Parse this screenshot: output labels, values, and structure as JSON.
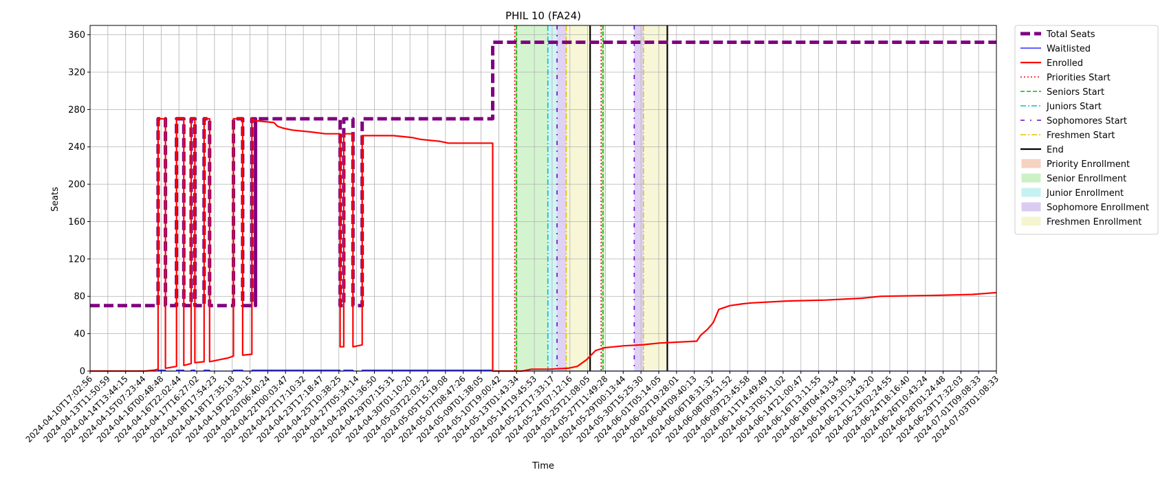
{
  "chart_data": {
    "type": "line",
    "title": "PHIL 10 (FA24)",
    "xlabel": "Time",
    "ylabel": "Seats",
    "ylim": [
      0,
      370
    ],
    "yticks": [
      0,
      40,
      80,
      120,
      160,
      200,
      240,
      280,
      320,
      360
    ],
    "xlim": [
      0,
      49.3
    ],
    "grid": true,
    "x_tick_labels": [
      "2024-04-10T17:02:56",
      "2024-04-13T11:50:59",
      "2024-04-14T13:44:15",
      "2024-04-15T07:23:44",
      "2024-04-16T00:48:48",
      "2024-04-16T22:02:44",
      "2024-04-17T16:27:02",
      "2024-04-18T17:54:23",
      "2024-04-18T17:35:18",
      "2024-04-19T20:33:15",
      "2024-04-20T06:40:24",
      "2024-04-22T00:03:47",
      "2024-04-22T17:10:32",
      "2024-04-23T17:18:47",
      "2024-04-25T10:38:25",
      "2024-04-27T05:34:14",
      "2024-04-29T01:36:50",
      "2024-04-29T07:15:31",
      "2024-04-30T01:10:20",
      "2024-05-03T22:03:22",
      "2024-05-05T15:19:08",
      "2024-05-07T08:47:26",
      "2024-05-09T01:38:05",
      "2024-05-10T19:00:42",
      "2024-05-13T01:43:34",
      "2024-05-14T19:45:53",
      "2024-05-22T17:33:17",
      "2024-05-24T07:12:16",
      "2024-05-25T21:08:05",
      "2024-05-27T11:49:28",
      "2024-05-29T00:13:44",
      "2024-05-30T15:25:30",
      "2024-06-01T05:14:05",
      "2024-06-02T19:28:01",
      "2024-06-04T09:40:13",
      "2024-06-06T18:31:32",
      "2024-06-08T09:51:52",
      "2024-06-09T23:45:58",
      "2024-06-11T14:49:49",
      "2024-06-13T05:11:02",
      "2024-06-14T21:00:47",
      "2024-06-16T13:11:55",
      "2024-06-18T04:43:54",
      "2024-06-19T19:30:34",
      "2024-06-21T11:43:20",
      "2024-06-23T02:24:55",
      "2024-06-24T18:16:40",
      "2024-06-26T10:43:24",
      "2024-06-28T01:24:48",
      "2024-06-29T17:32:03",
      "2024-07-01T09:08:33",
      "2024-07-03T01:08:33"
    ],
    "series": [
      {
        "name": "Total Seats",
        "color": "#800080",
        "style": "dashed-thick",
        "points": [
          [
            0,
            70
          ],
          [
            3.7,
            70
          ],
          [
            3.7,
            270
          ],
          [
            4.1,
            270
          ],
          [
            4.1,
            70
          ],
          [
            4.7,
            70
          ],
          [
            4.7,
            270
          ],
          [
            5.1,
            270
          ],
          [
            5.1,
            70
          ],
          [
            5.5,
            70
          ],
          [
            5.5,
            270
          ],
          [
            5.7,
            270
          ],
          [
            5.7,
            70
          ],
          [
            6.2,
            70
          ],
          [
            6.2,
            270
          ],
          [
            6.5,
            270
          ],
          [
            6.5,
            70
          ],
          [
            7.8,
            70
          ],
          [
            7.8,
            270
          ],
          [
            8.3,
            270
          ],
          [
            8.3,
            70
          ],
          [
            8.8,
            70
          ],
          [
            8.8,
            270
          ],
          [
            9.0,
            270
          ],
          [
            9.0,
            70
          ],
          [
            9.0,
            70
          ],
          [
            9.0,
            270
          ],
          [
            13.6,
            270
          ],
          [
            13.6,
            70
          ],
          [
            13.8,
            70
          ],
          [
            13.8,
            270
          ],
          [
            14.3,
            270
          ],
          [
            14.3,
            70
          ],
          [
            14.8,
            70
          ],
          [
            14.8,
            270
          ],
          [
            21.9,
            270
          ],
          [
            21.9,
            352
          ],
          [
            49.3,
            352
          ]
        ]
      },
      {
        "name": "Waitlisted",
        "color": "#0000ff",
        "style": "solid-thin",
        "points": [
          [
            0,
            0
          ],
          [
            3.7,
            0
          ],
          [
            3.7,
            1
          ],
          [
            4.1,
            1
          ],
          [
            4.1,
            0
          ],
          [
            4.7,
            0
          ],
          [
            4.7,
            1
          ],
          [
            5.1,
            1
          ],
          [
            5.1,
            0
          ],
          [
            5.5,
            0
          ],
          [
            5.5,
            1
          ],
          [
            5.7,
            1
          ],
          [
            5.7,
            0
          ],
          [
            6.2,
            0
          ],
          [
            6.2,
            1
          ],
          [
            6.5,
            1
          ],
          [
            6.5,
            0
          ],
          [
            7.8,
            0
          ],
          [
            7.8,
            1
          ],
          [
            8.3,
            1
          ],
          [
            8.3,
            0
          ],
          [
            8.8,
            0
          ],
          [
            8.8,
            1
          ],
          [
            13.6,
            1
          ],
          [
            13.6,
            0
          ],
          [
            13.8,
            0
          ],
          [
            13.8,
            1
          ],
          [
            14.3,
            1
          ],
          [
            14.3,
            0
          ],
          [
            14.8,
            0
          ],
          [
            14.8,
            1
          ],
          [
            21.9,
            1
          ],
          [
            21.9,
            0
          ],
          [
            49.3,
            0
          ]
        ]
      },
      {
        "name": "Enrolled",
        "color": "#ff0000",
        "style": "solid",
        "points": [
          [
            0,
            0
          ],
          [
            3.0,
            0
          ],
          [
            3.5,
            1
          ],
          [
            3.7,
            2
          ],
          [
            3.7,
            270
          ],
          [
            4.1,
            270
          ],
          [
            4.1,
            3
          ],
          [
            4.7,
            5
          ],
          [
            4.7,
            270
          ],
          [
            5.1,
            270
          ],
          [
            5.1,
            6
          ],
          [
            5.5,
            8
          ],
          [
            5.5,
            270
          ],
          [
            5.7,
            270
          ],
          [
            5.7,
            9
          ],
          [
            6.2,
            10
          ],
          [
            6.2,
            270
          ],
          [
            6.5,
            270
          ],
          [
            6.5,
            10
          ],
          [
            7.0,
            12
          ],
          [
            7.5,
            14
          ],
          [
            7.8,
            16
          ],
          [
            7.8,
            270
          ],
          [
            8.3,
            270
          ],
          [
            8.3,
            17
          ],
          [
            8.8,
            18
          ],
          [
            8.8,
            270
          ],
          [
            9.0,
            268
          ],
          [
            10.0,
            266
          ],
          [
            10.2,
            262
          ],
          [
            10.5,
            260
          ],
          [
            11.0,
            258
          ],
          [
            12.0,
            256
          ],
          [
            12.8,
            254
          ],
          [
            13.6,
            254
          ],
          [
            13.6,
            26
          ],
          [
            13.8,
            26
          ],
          [
            13.8,
            254
          ],
          [
            14.3,
            254
          ],
          [
            14.3,
            26
          ],
          [
            14.8,
            28
          ],
          [
            14.8,
            252
          ],
          [
            16.5,
            252
          ],
          [
            17.5,
            250
          ],
          [
            18.0,
            248
          ],
          [
            19.0,
            246
          ],
          [
            19.5,
            244
          ],
          [
            21.9,
            244
          ],
          [
            21.9,
            0
          ],
          [
            23.5,
            0
          ],
          [
            24.0,
            2
          ],
          [
            25.0,
            2
          ],
          [
            26.0,
            3
          ],
          [
            26.5,
            5
          ],
          [
            27.0,
            12
          ],
          [
            27.5,
            22
          ],
          [
            28.0,
            25
          ],
          [
            29.0,
            27
          ],
          [
            30.0,
            28
          ],
          [
            31.0,
            30
          ],
          [
            33.0,
            32
          ],
          [
            33.2,
            38
          ],
          [
            33.6,
            45
          ],
          [
            33.9,
            52
          ],
          [
            34.2,
            66
          ],
          [
            34.8,
            70
          ],
          [
            35.5,
            72
          ],
          [
            36.0,
            73
          ],
          [
            38.0,
            75
          ],
          [
            40.0,
            76
          ],
          [
            42.0,
            78
          ],
          [
            43.0,
            80
          ],
          [
            46.0,
            81
          ],
          [
            48.0,
            82
          ],
          [
            49.3,
            84
          ]
        ]
      }
    ],
    "vertical_markers": [
      {
        "name": "Priorities Start",
        "color": "#ff0000",
        "style": "dotted",
        "x": [
          23.1,
          27.8
        ]
      },
      {
        "name": "Seniors Start",
        "color": "#00bb00",
        "style": "dashed",
        "x": [
          23.2,
          27.9
        ]
      },
      {
        "name": "Juniors Start",
        "color": "#00bfbf",
        "style": "dashdot",
        "x": [
          24.9
        ]
      },
      {
        "name": "Sophomores Start",
        "color": "#6a00d0",
        "style": "dashdot-wide",
        "x": [
          25.4,
          29.6
        ]
      },
      {
        "name": "Freshmen Start",
        "color": "#e0c000",
        "style": "dashdot",
        "x": [
          25.9,
          30.1
        ]
      },
      {
        "name": "End",
        "color": "#000000",
        "style": "solid",
        "x": [
          27.2,
          31.4
        ]
      }
    ],
    "shaded_regions": [
      {
        "name": "Priority Enrollment",
        "color": "#f4c0a8",
        "ranges": [
          [
            23.1,
            23.2
          ],
          [
            27.8,
            27.9
          ]
        ]
      },
      {
        "name": "Senior Enrollment",
        "color": "#b8ecb0",
        "ranges": [
          [
            23.2,
            24.9
          ],
          [
            27.9,
            28.0
          ]
        ]
      },
      {
        "name": "Junior Enrollment",
        "color": "#b0ecec",
        "ranges": [
          [
            24.9,
            25.4
          ]
        ]
      },
      {
        "name": "Sophomore Enrollment",
        "color": "#ccb4ec",
        "ranges": [
          [
            25.4,
            25.9
          ],
          [
            29.6,
            30.1
          ]
        ]
      },
      {
        "name": "Freshmen Enrollment",
        "color": "#f2f2bc",
        "ranges": [
          [
            25.9,
            27.2
          ],
          [
            30.1,
            31.4
          ]
        ]
      }
    ],
    "legend": {
      "placement": "outside-right",
      "entries": [
        {
          "label": "Total Seats",
          "kind": "line",
          "color": "#800080",
          "style": "dashed-thick"
        },
        {
          "label": "Waitlisted",
          "kind": "line",
          "color": "#0000ff",
          "style": "solid-thin"
        },
        {
          "label": "Enrolled",
          "kind": "line",
          "color": "#ff0000",
          "style": "solid"
        },
        {
          "label": "Priorities Start",
          "kind": "line",
          "color": "#ff0000",
          "style": "dotted"
        },
        {
          "label": "Seniors Start",
          "kind": "line",
          "color": "#00bb00",
          "style": "dashed"
        },
        {
          "label": "Juniors Start",
          "kind": "line",
          "color": "#00bfbf",
          "style": "dashdot"
        },
        {
          "label": "Sophomores Start",
          "kind": "line",
          "color": "#6a00d0",
          "style": "dashdot-wide"
        },
        {
          "label": "Freshmen Start",
          "kind": "line",
          "color": "#e0c000",
          "style": "dashdot"
        },
        {
          "label": "End",
          "kind": "line",
          "color": "#000000",
          "style": "solid"
        },
        {
          "label": "Priority Enrollment",
          "kind": "patch",
          "color": "#f4c0a8"
        },
        {
          "label": "Senior Enrollment",
          "kind": "patch",
          "color": "#b8ecb0"
        },
        {
          "label": "Junior Enrollment",
          "kind": "patch",
          "color": "#b0ecec"
        },
        {
          "label": "Sophomore Enrollment",
          "kind": "patch",
          "color": "#ccb4ec"
        },
        {
          "label": "Freshmen Enrollment",
          "kind": "patch",
          "color": "#f2f2bc"
        }
      ]
    }
  }
}
